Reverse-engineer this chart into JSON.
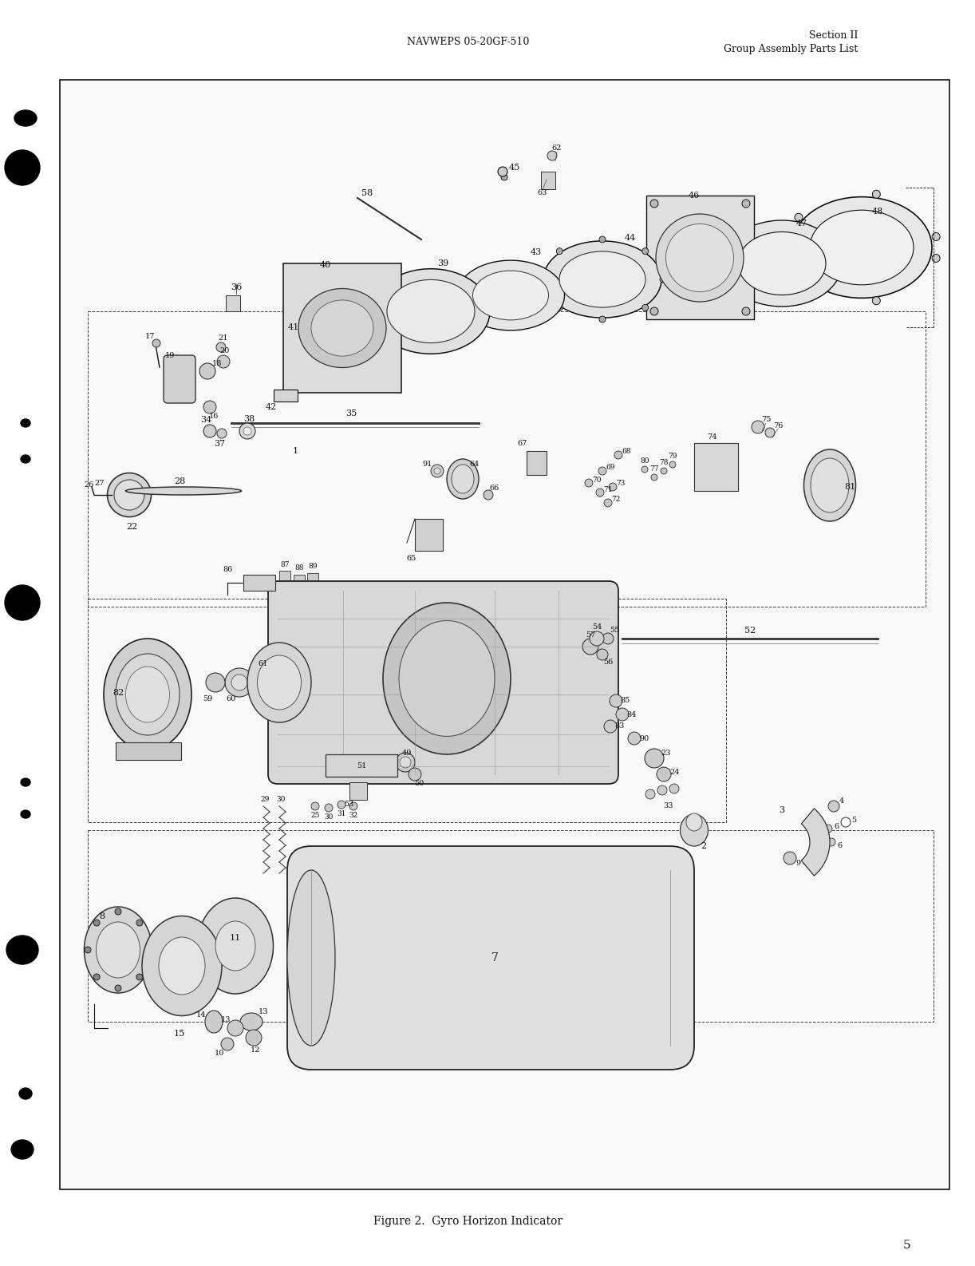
{
  "page_bg": "#ffffff",
  "header_left": "NAVWEPS 05-20GF-510",
  "header_right_line1": "Section II",
  "header_right_line2": "Group Assembly Parts List",
  "figure_caption": "Figure 2.  Gyro Horizon Indicator",
  "page_number": "5",
  "border_color": "#111111",
  "text_color": "#222222",
  "font_family": "serif",
  "figsize": [
    12.22,
    15.86
  ],
  "dpi": 100
}
